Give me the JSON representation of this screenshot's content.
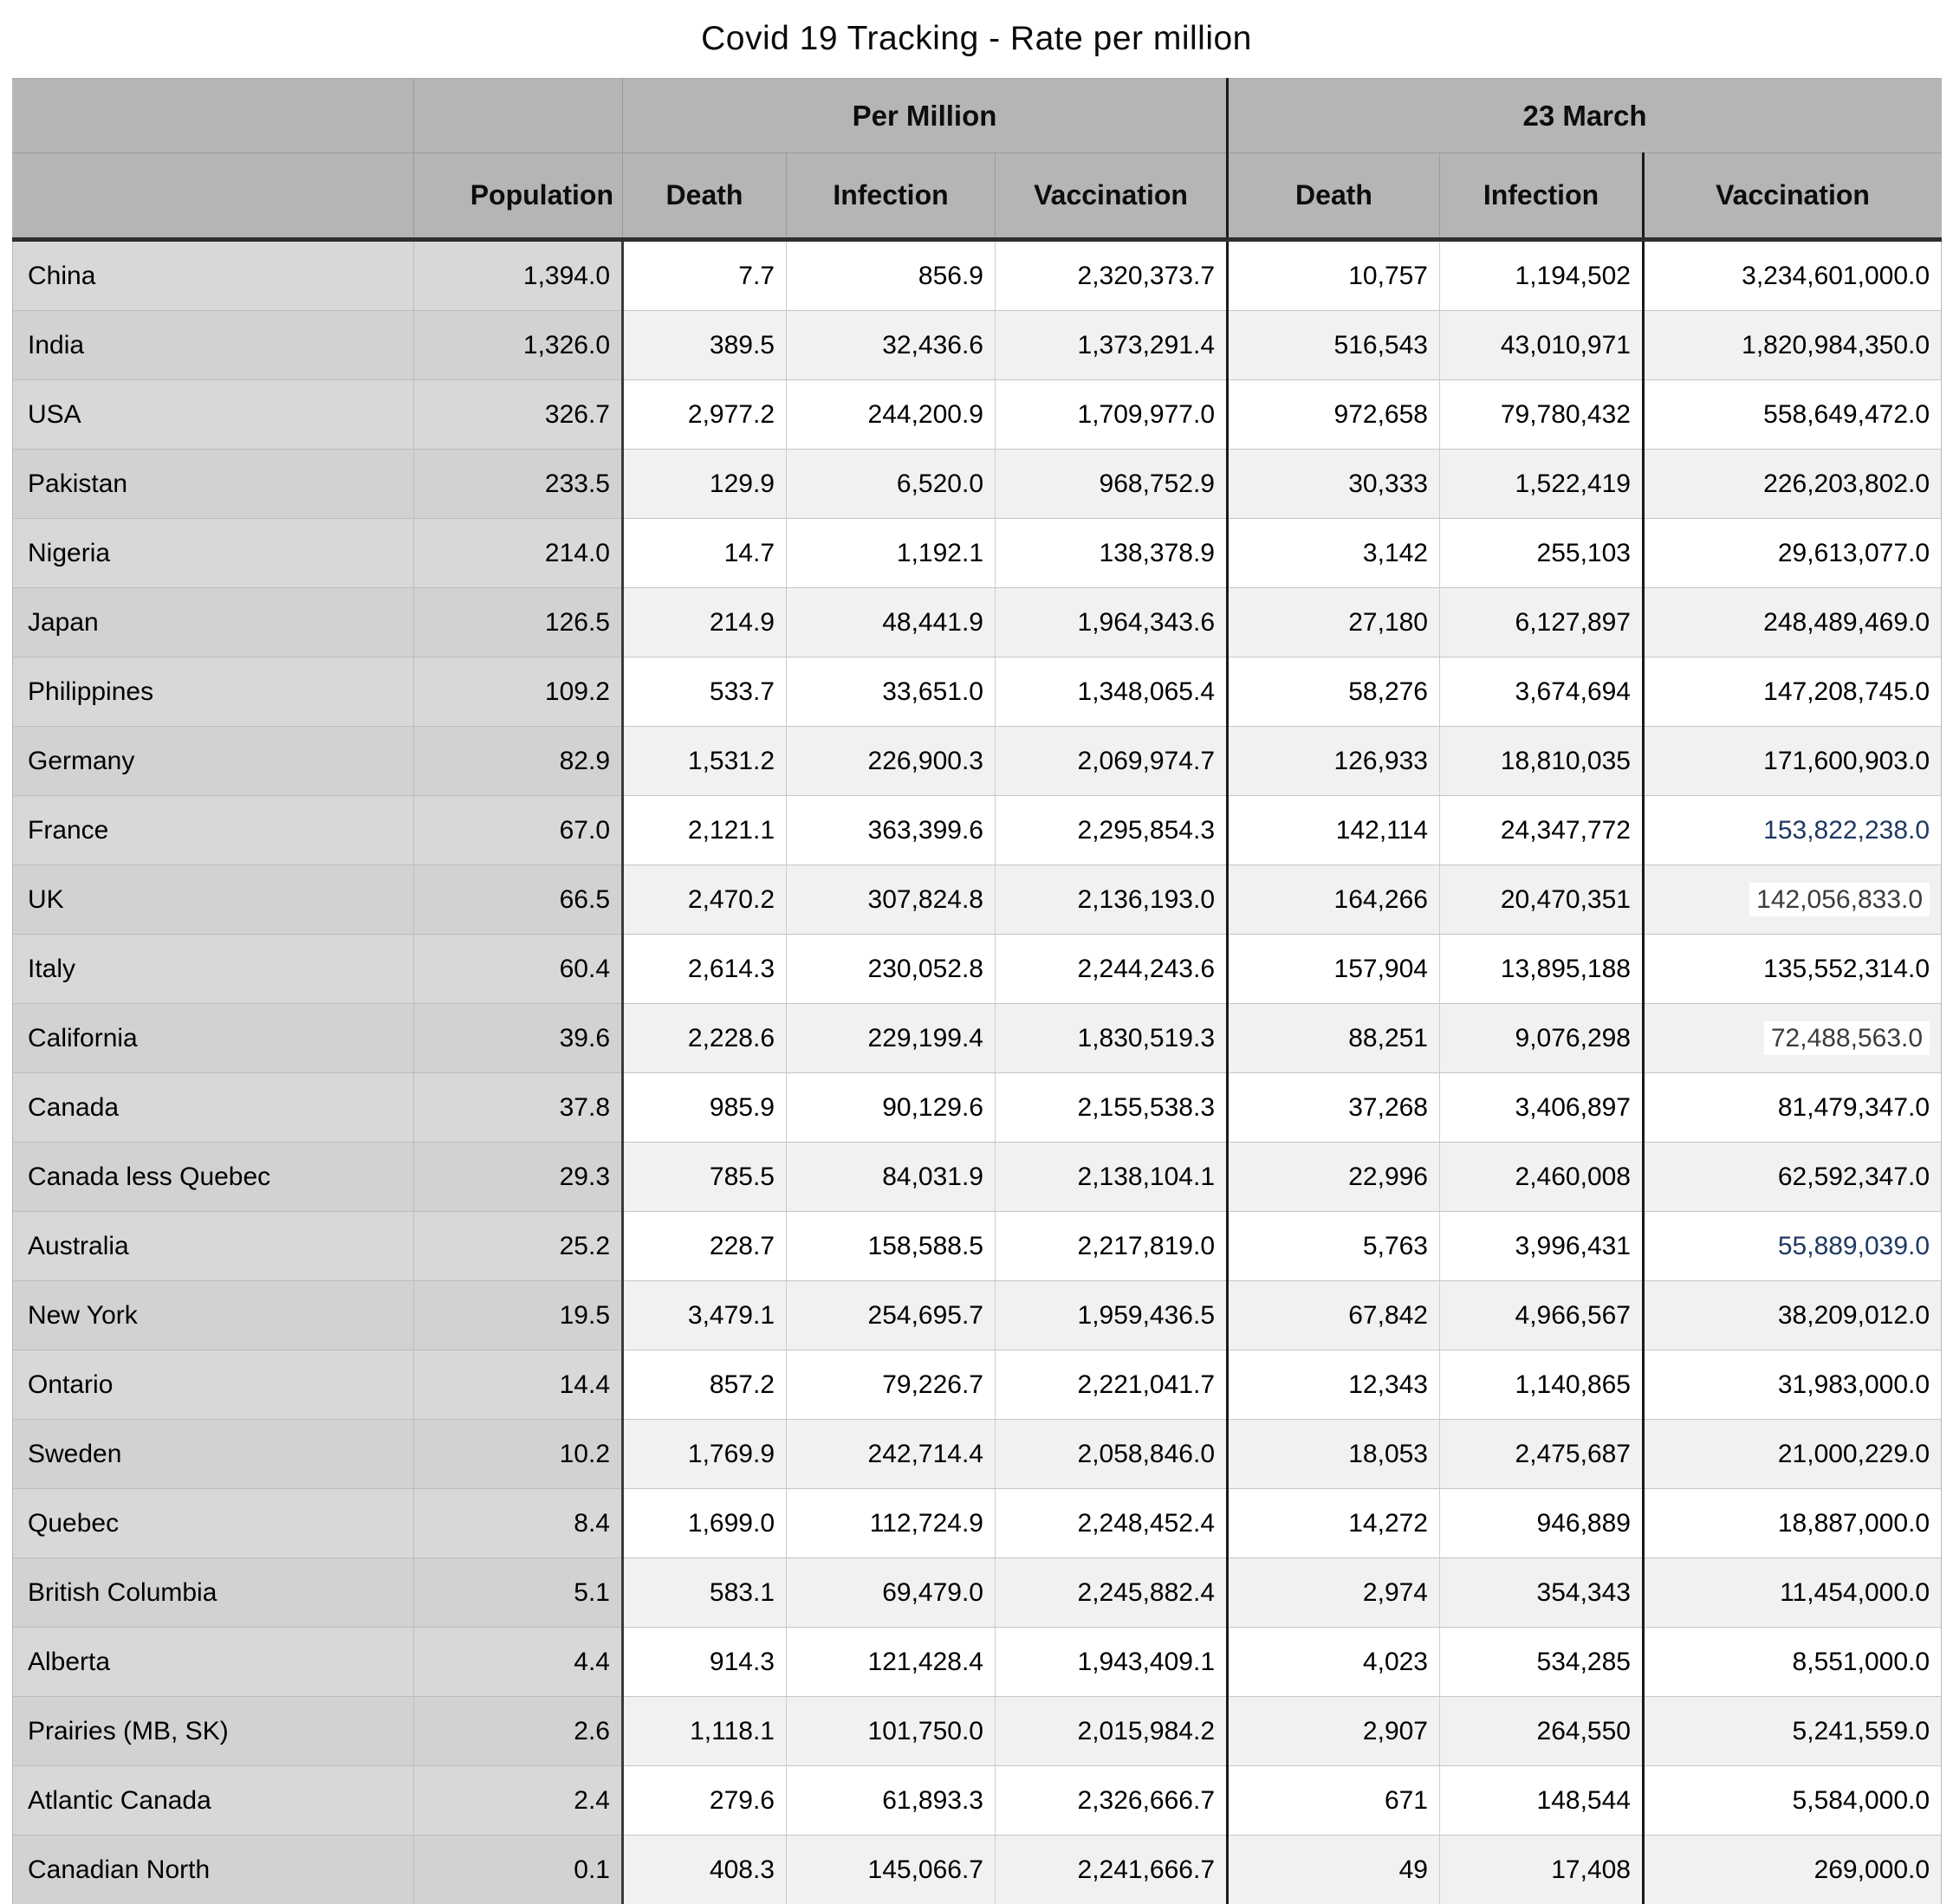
{
  "title": "Covid 19 Tracking - Rate per million",
  "colors": {
    "accent_blue": "#1f3864",
    "highlight_bg": "#ffffff",
    "highlight_text": "#3c3c3c",
    "header_bg": "#b5b5b5",
    "label_column_bg": "#d8d8d8",
    "stripe_bg": "#f1f1f1"
  },
  "table": {
    "group_headers": [
      {
        "label": "",
        "span": 2
      },
      {
        "label": "Per Million",
        "span": 3
      },
      {
        "label": "23 March",
        "span": 3
      }
    ],
    "column_headers": [
      "",
      "Population",
      "Death",
      "Infection",
      "Vaccination",
      "Death",
      "Infection",
      "Vaccination"
    ],
    "rows": [
      {
        "label": "China",
        "population": "1,394.0",
        "pm_death": "7.7",
        "pm_infection": "856.9",
        "pm_vaccination": "2,320,373.7",
        "m23_death": "10,757",
        "m23_infection": "1,194,502",
        "m23_vaccination": "3,234,601,000.0"
      },
      {
        "label": "India",
        "population": "1,326.0",
        "pm_death": "389.5",
        "pm_infection": "32,436.6",
        "pm_vaccination": "1,373,291.4",
        "m23_death": "516,543",
        "m23_infection": "43,010,971",
        "m23_vaccination": "1,820,984,350.0"
      },
      {
        "label": "USA",
        "population": "326.7",
        "pm_death": "2,977.2",
        "pm_infection": "244,200.9",
        "pm_vaccination": "1,709,977.0",
        "m23_death": "972,658",
        "m23_infection": "79,780,432",
        "m23_vaccination": "558,649,472.0"
      },
      {
        "label": "Pakistan",
        "population": "233.5",
        "pm_death": "129.9",
        "pm_infection": "6,520.0",
        "pm_vaccination": "968,752.9",
        "m23_death": "30,333",
        "m23_infection": "1,522,419",
        "m23_vaccination": "226,203,802.0"
      },
      {
        "label": "Nigeria",
        "population": "214.0",
        "pm_death": "14.7",
        "pm_infection": "1,192.1",
        "pm_vaccination": "138,378.9",
        "m23_death": "3,142",
        "m23_infection": "255,103",
        "m23_vaccination": "29,613,077.0"
      },
      {
        "label": "Japan",
        "population": "126.5",
        "pm_death": "214.9",
        "pm_infection": "48,441.9",
        "pm_vaccination": "1,964,343.6",
        "m23_death": "27,180",
        "m23_infection": "6,127,897",
        "m23_vaccination": "248,489,469.0"
      },
      {
        "label": "Philippines",
        "population": "109.2",
        "pm_death": "533.7",
        "pm_infection": "33,651.0",
        "pm_vaccination": "1,348,065.4",
        "m23_death": "58,276",
        "m23_infection": "3,674,694",
        "m23_vaccination": "147,208,745.0"
      },
      {
        "label": "Germany",
        "population": "82.9",
        "pm_death": "1,531.2",
        "pm_infection": "226,900.3",
        "pm_vaccination": "2,069,974.7",
        "m23_death": "126,933",
        "m23_infection": "18,810,035",
        "m23_vaccination": "171,600,903.0"
      },
      {
        "label": "France",
        "population": "67.0",
        "pm_death": "2,121.1",
        "pm_infection": "363,399.6",
        "pm_vaccination": "2,295,854.3",
        "m23_death": "142,114",
        "m23_infection": "24,347,772",
        "m23_vaccination": "153,822,238.0",
        "m23_vaccination_style": "blue"
      },
      {
        "label": "UK",
        "population": "66.5",
        "pm_death": "2,470.2",
        "pm_infection": "307,824.8",
        "pm_vaccination": "2,136,193.0",
        "m23_death": "164,266",
        "m23_infection": "20,470,351",
        "m23_vaccination": "142,056,833.0",
        "m23_vaccination_style": "highlight"
      },
      {
        "label": "Italy",
        "population": "60.4",
        "pm_death": "2,614.3",
        "pm_infection": "230,052.8",
        "pm_vaccination": "2,244,243.6",
        "m23_death": "157,904",
        "m23_infection": "13,895,188",
        "m23_vaccination": "135,552,314.0"
      },
      {
        "label": "California",
        "population": "39.6",
        "pm_death": "2,228.6",
        "pm_infection": "229,199.4",
        "pm_vaccination": "1,830,519.3",
        "m23_death": "88,251",
        "m23_infection": "9,076,298",
        "m23_vaccination": "72,488,563.0",
        "m23_vaccination_style": "highlight"
      },
      {
        "label": "Canada",
        "population": "37.8",
        "pm_death": "985.9",
        "pm_infection": "90,129.6",
        "pm_vaccination": "2,155,538.3",
        "m23_death": "37,268",
        "m23_infection": "3,406,897",
        "m23_vaccination": "81,479,347.0"
      },
      {
        "label": "Canada less Quebec",
        "population": "29.3",
        "pm_death": "785.5",
        "pm_infection": "84,031.9",
        "pm_vaccination": "2,138,104.1",
        "m23_death": "22,996",
        "m23_infection": "2,460,008",
        "m23_vaccination": "62,592,347.0"
      },
      {
        "label": "Australia",
        "population": "25.2",
        "pm_death": "228.7",
        "pm_infection": "158,588.5",
        "pm_vaccination": "2,217,819.0",
        "m23_death": "5,763",
        "m23_infection": "3,996,431",
        "m23_vaccination": "55,889,039.0",
        "m23_vaccination_style": "blue"
      },
      {
        "label": "New York",
        "population": "19.5",
        "pm_death": "3,479.1",
        "pm_infection": "254,695.7",
        "pm_vaccination": "1,959,436.5",
        "m23_death": "67,842",
        "m23_infection": "4,966,567",
        "m23_vaccination": "38,209,012.0"
      },
      {
        "label": "Ontario",
        "population": "14.4",
        "pm_death": "857.2",
        "pm_infection": "79,226.7",
        "pm_vaccination": "2,221,041.7",
        "m23_death": "12,343",
        "m23_infection": "1,140,865",
        "m23_vaccination": "31,983,000.0"
      },
      {
        "label": "Sweden",
        "population": "10.2",
        "pm_death": "1,769.9",
        "pm_infection": "242,714.4",
        "pm_vaccination": "2,058,846.0",
        "m23_death": "18,053",
        "m23_infection": "2,475,687",
        "m23_vaccination": "21,000,229.0"
      },
      {
        "label": "Quebec",
        "population": "8.4",
        "pm_death": "1,699.0",
        "pm_infection": "112,724.9",
        "pm_vaccination": "2,248,452.4",
        "m23_death": "14,272",
        "m23_infection": "946,889",
        "m23_vaccination": "18,887,000.0"
      },
      {
        "label": "British Columbia",
        "population": "5.1",
        "pm_death": "583.1",
        "pm_infection": "69,479.0",
        "pm_vaccination": "2,245,882.4",
        "m23_death": "2,974",
        "m23_infection": "354,343",
        "m23_vaccination": "11,454,000.0"
      },
      {
        "label": "Alberta",
        "population": "4.4",
        "pm_death": "914.3",
        "pm_infection": "121,428.4",
        "pm_vaccination": "1,943,409.1",
        "m23_death": "4,023",
        "m23_infection": "534,285",
        "m23_vaccination": "8,551,000.0"
      },
      {
        "label": "Prairies (MB, SK)",
        "population": "2.6",
        "pm_death": "1,118.1",
        "pm_infection": "101,750.0",
        "pm_vaccination": "2,015,984.2",
        "m23_death": "2,907",
        "m23_infection": "264,550",
        "m23_vaccination": "5,241,559.0"
      },
      {
        "label": "Atlantic Canada",
        "population": "2.4",
        "pm_death": "279.6",
        "pm_infection": "61,893.3",
        "pm_vaccination": "2,326,666.7",
        "m23_death": "671",
        "m23_infection": "148,544",
        "m23_vaccination": "5,584,000.0"
      },
      {
        "label": "Canadian North",
        "population": "0.1",
        "pm_death": "408.3",
        "pm_infection": "145,066.7",
        "pm_vaccination": "2,241,666.7",
        "m23_death": "49",
        "m23_infection": "17,408",
        "m23_vaccination": "269,000.0"
      }
    ]
  }
}
